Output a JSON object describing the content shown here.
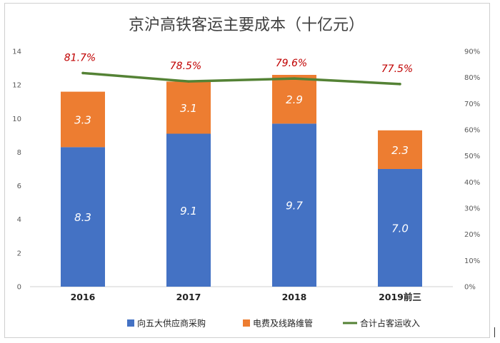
{
  "chart_data": {
    "type": "bar",
    "stacked": true,
    "title": "京沪高铁客运主要成本（十亿元）",
    "categories": [
      "2016",
      "2017",
      "2018",
      "2019前三"
    ],
    "series": [
      {
        "name": "向五大供应商采购",
        "values": [
          8.3,
          9.1,
          9.7,
          7.0
        ],
        "labels": [
          "8.3",
          "9.1",
          "9.7",
          "7.0"
        ],
        "color": "#4472c4",
        "axis": "left"
      },
      {
        "name": "电费及线路维管",
        "values": [
          3.3,
          3.1,
          2.9,
          2.3
        ],
        "labels": [
          "3.3",
          "3.1",
          "2.9",
          "2.3"
        ],
        "color": "#ed7d31",
        "axis": "left"
      },
      {
        "name": "合计占客运收入",
        "type": "line",
        "values": [
          81.7,
          78.5,
          79.6,
          77.5
        ],
        "labels": [
          "81.7%",
          "78.5%",
          "79.6%",
          "77.5%"
        ],
        "color": "#548235",
        "axis": "right"
      }
    ],
    "ylim": [
      0,
      14
    ],
    "yticks": [
      "0",
      "2",
      "4",
      "6",
      "8",
      "10",
      "12",
      "14"
    ],
    "y2lim": [
      0,
      90
    ],
    "y2ticks": [
      "0%",
      "10%",
      "20%",
      "30%",
      "40%",
      "50%",
      "60%",
      "70%",
      "80%",
      "90%"
    ],
    "grid": false,
    "legend": "bottom"
  }
}
